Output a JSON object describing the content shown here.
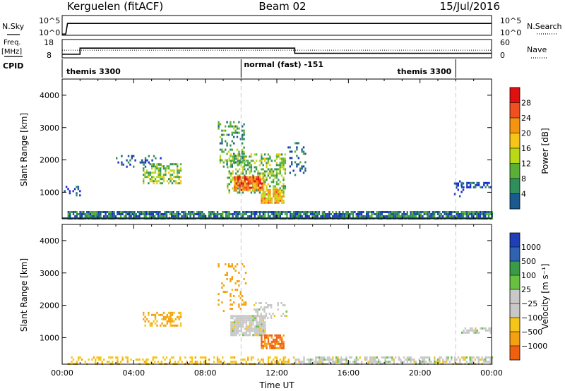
{
  "header": {
    "radar": "Kerguelen (fitACF)",
    "beam": "Beam 02",
    "date": "15/Jul/2016"
  },
  "nsky_panel": {
    "left_label": "N.Sky",
    "right_label": "N.Search",
    "left_ticks": [
      "10^5",
      "10^0"
    ],
    "right_ticks": [
      "10^5",
      "10^0"
    ]
  },
  "freq_panel": {
    "left_label_1": "Freq.",
    "left_label_2": "[MHz]",
    "right_label": "Nave",
    "left_ticks": [
      "18",
      "8"
    ],
    "right_ticks": [
      "60",
      "0"
    ]
  },
  "cpid_panel": {
    "label": "CPID",
    "modes": [
      {
        "text": "themis 3300",
        "start_hour": 0,
        "end_hour": 10
      },
      {
        "text": "normal (fast) -151",
        "start_hour": 10,
        "end_hour": 22
      },
      {
        "text": "themis 3300",
        "start_hour": 22,
        "end_hour": 24
      }
    ]
  },
  "power_scale": {
    "title": "Power [dB]",
    "labels": [
      "28",
      "24",
      "20",
      "16",
      "12",
      "8",
      "4"
    ],
    "colors": [
      "#e01010",
      "#f05020",
      "#f59410",
      "#f5c518",
      "#b8d818",
      "#5ab036",
      "#2f8f5c",
      "#1a5a8f",
      "#2030c0",
      "#1020f0"
    ]
  },
  "velocity_scale": {
    "title": "Velocity [m s⁻¹]",
    "labels": [
      "1000",
      "500",
      "100",
      "25",
      "−25",
      "−100",
      "−500",
      "−1000"
    ],
    "colors": [
      "#1f3fb8",
      "#2f63b0",
      "#3a9a48",
      "#68c040",
      "#c8c8c8",
      "#c8c8c8",
      "#f5c518",
      "#f5a010",
      "#f06010",
      "#e81010"
    ]
  },
  "chart_data": [
    {
      "type": "line",
      "panel": "N.Sky / N.Search",
      "x_unit": "hour UT",
      "series": [
        {
          "style": "solid",
          "x": [
            0,
            0.2,
            0.3,
            24
          ],
          "y": [
            0.3,
            0.3,
            3.0,
            3.0
          ]
        },
        {
          "style": "dotted",
          "x": [
            0.3,
            24
          ],
          "y": [
            3.0,
            3.0
          ]
        }
      ],
      "ylim": [
        0,
        5
      ],
      "yscale": "log10"
    },
    {
      "type": "line",
      "panel": "Freq. / Nave",
      "x_unit": "hour UT",
      "series": [
        {
          "style": "solid",
          "x": [
            0,
            1,
            1,
            13,
            13,
            24
          ],
          "y": [
            10,
            10,
            13.3,
            13.3,
            10.5,
            10.5
          ]
        },
        {
          "style": "dotted",
          "x": [
            0,
            24
          ],
          "y": [
            12.2,
            12.2
          ]
        }
      ],
      "ylim": [
        8,
        18
      ]
    },
    {
      "type": "heatmap",
      "panel": "Power",
      "ylabel": "Slant Range [km]",
      "xlim": [
        0,
        24
      ],
      "ylim": [
        180,
        4500
      ],
      "yticks": [
        1000,
        2000,
        3000,
        4000
      ],
      "xticks": [
        "00:00",
        "04:00",
        "08:00",
        "12:00",
        "16:00",
        "20:00",
        "00:00"
      ],
      "clim": [
        0,
        30
      ],
      "colorbar_label": "Power [dB]",
      "patches": [
        {
          "t0": 0.3,
          "t1": 24.0,
          "r0": 200,
          "r1": 420,
          "v": 9,
          "d": 0.8
        },
        {
          "t0": 0.1,
          "t1": 1.0,
          "r0": 900,
          "r1": 1200,
          "v": 6,
          "d": 0.35
        },
        {
          "t0": 3.0,
          "t1": 5.5,
          "r0": 1800,
          "r1": 2150,
          "v": 7,
          "d": 0.2
        },
        {
          "t0": 4.5,
          "t1": 6.6,
          "r0": 1300,
          "r1": 1900,
          "v": 14,
          "d": 0.55
        },
        {
          "t0": 8.7,
          "t1": 10.2,
          "r0": 1800,
          "r1": 3200,
          "v": 11,
          "d": 0.3
        },
        {
          "t0": 9.2,
          "t1": 12.5,
          "r0": 1000,
          "r1": 2200,
          "v": 14,
          "d": 0.45
        },
        {
          "t0": 9.6,
          "t1": 11.3,
          "r0": 1100,
          "r1": 1500,
          "v": 24,
          "d": 0.9
        },
        {
          "t0": 11.1,
          "t1": 12.4,
          "r0": 700,
          "r1": 1100,
          "v": 20,
          "d": 0.8
        },
        {
          "t0": 12.6,
          "t1": 13.6,
          "r0": 1550,
          "r1": 2550,
          "v": 8,
          "d": 0.2
        },
        {
          "t0": 21.9,
          "t1": 22.4,
          "r0": 900,
          "r1": 1500,
          "v": 5,
          "d": 0.4
        },
        {
          "t0": 22.3,
          "t1": 24.0,
          "r0": 1150,
          "r1": 1320,
          "v": 6,
          "d": 0.6
        }
      ]
    },
    {
      "type": "heatmap",
      "panel": "Velocity",
      "ylabel": "Slant Range [km]",
      "xlabel": "Time UT",
      "xlim": [
        0,
        24
      ],
      "ylim": [
        180,
        4500
      ],
      "yticks": [
        1000,
        2000,
        3000,
        4000
      ],
      "xticks": [
        "00:00",
        "04:00",
        "08:00",
        "12:00",
        "16:00",
        "20:00",
        "00:00"
      ],
      "clim": [
        -1000,
        1000
      ],
      "colorbar_label": "Velocity [m s⁻¹]",
      "patches": [
        {
          "t0": 0.3,
          "t1": 13.0,
          "r0": 200,
          "r1": 420,
          "v": -80,
          "d": 0.35
        },
        {
          "t0": 13.0,
          "t1": 24.0,
          "r0": 200,
          "r1": 420,
          "v": 0,
          "d": 0.55
        },
        {
          "t0": 4.5,
          "t1": 6.6,
          "r0": 1400,
          "r1": 1800,
          "v": -120,
          "d": 0.45
        },
        {
          "t0": 8.7,
          "t1": 10.3,
          "r0": 1800,
          "r1": 3300,
          "v": -150,
          "d": 0.15
        },
        {
          "t0": 9.4,
          "t1": 11.3,
          "r0": 1100,
          "r1": 1700,
          "v": 0,
          "d": 0.85
        },
        {
          "t0": 10.6,
          "t1": 12.5,
          "r0": 1600,
          "r1": 2100,
          "v": 0,
          "d": 0.35
        },
        {
          "t0": 11.1,
          "t1": 12.4,
          "r0": 700,
          "r1": 1100,
          "v": -600,
          "d": 0.75
        },
        {
          "t0": 22.3,
          "t1": 24.0,
          "r0": 1150,
          "r1": 1320,
          "v": 0,
          "d": 0.55
        }
      ]
    }
  ]
}
